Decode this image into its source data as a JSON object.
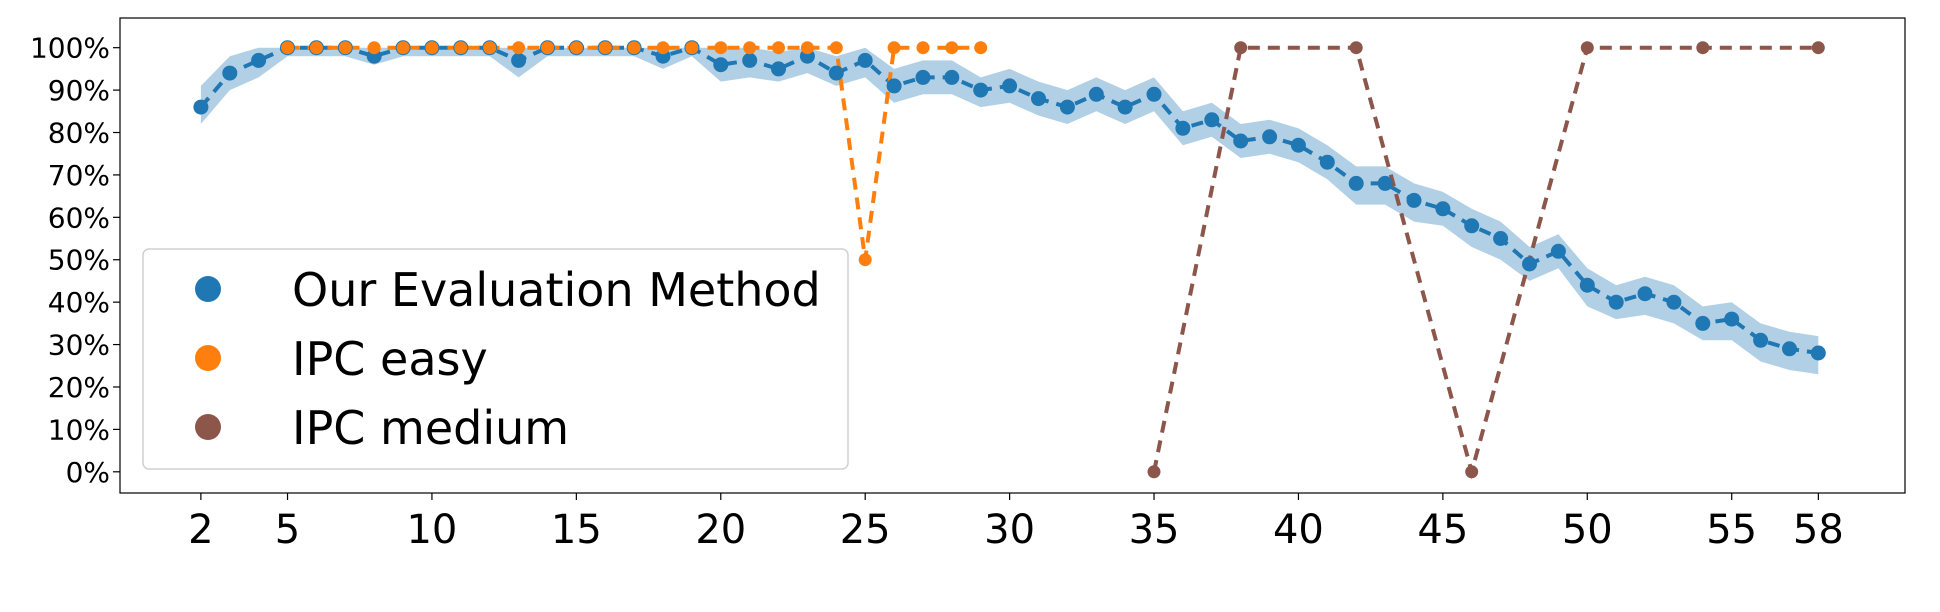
{
  "chart_data": {
    "type": "line",
    "title": "",
    "xlabel": "",
    "ylabel": "",
    "xlim": [
      -0.8,
      61
    ],
    "ylim": [
      -5,
      107
    ],
    "x_ticks": [
      2,
      5,
      10,
      15,
      20,
      25,
      30,
      35,
      40,
      45,
      50,
      55,
      58
    ],
    "x_tick_labels": [
      "2",
      "5",
      "10",
      "15",
      "20",
      "25",
      "30",
      "35",
      "40",
      "45",
      "50",
      "55",
      "58"
    ],
    "y_ticks": [
      0,
      10,
      20,
      30,
      40,
      50,
      60,
      70,
      80,
      90,
      100
    ],
    "y_tick_labels": [
      "0%",
      "10%",
      "20%",
      "30%",
      "40%",
      "50%",
      "60%",
      "70%",
      "80%",
      "90%",
      "100%"
    ],
    "grid": false,
    "legend_position": "center-left",
    "series": [
      {
        "name": "Our Evaluation Method",
        "color": "#1f77b4",
        "band_color": "#1f77b4",
        "x": [
          2,
          3,
          4,
          5,
          6,
          7,
          8,
          9,
          10,
          11,
          12,
          13,
          14,
          15,
          16,
          17,
          18,
          19,
          20,
          21,
          22,
          23,
          24,
          25,
          26,
          27,
          28,
          29,
          30,
          31,
          32,
          33,
          34,
          35,
          36,
          37,
          38,
          39,
          40,
          41,
          42,
          43,
          44,
          45,
          46,
          47,
          48,
          49,
          50,
          51,
          52,
          53,
          54,
          55,
          56,
          57,
          58
        ],
        "values": [
          86,
          94,
          97,
          100,
          100,
          100,
          98,
          100,
          100,
          100,
          100,
          97,
          100,
          100,
          100,
          100,
          98,
          100,
          96,
          97,
          95,
          98,
          94,
          97,
          91,
          93,
          93,
          90,
          91,
          88,
          86,
          89,
          86,
          89,
          81,
          83,
          78,
          79,
          77,
          73,
          68,
          68,
          64,
          62,
          58,
          55,
          49,
          52,
          44,
          40,
          42,
          40,
          35,
          36,
          31,
          29,
          28
        ],
        "lower": [
          82,
          90,
          93,
          98,
          98,
          98,
          96,
          98,
          98,
          98,
          98,
          93,
          98,
          98,
          98,
          98,
          95,
          98,
          92,
          93,
          92,
          94,
          91,
          93,
          87,
          89,
          89,
          86,
          87,
          84,
          82,
          85,
          82,
          85,
          77,
          79,
          74,
          75,
          73,
          69,
          63,
          63,
          59,
          58,
          53,
          50,
          45,
          48,
          39,
          36,
          37,
          35,
          31,
          31,
          26,
          24,
          23
        ],
        "upper": [
          91,
          98,
          100,
          100,
          100,
          100,
          100,
          100,
          100,
          100,
          100,
          100,
          100,
          100,
          100,
          100,
          100,
          100,
          100,
          100,
          99,
          100,
          98,
          100,
          95,
          97,
          97,
          93,
          95,
          92,
          90,
          93,
          90,
          93,
          85,
          87,
          82,
          83,
          81,
          77,
          72,
          72,
          68,
          66,
          62,
          59,
          53,
          56,
          48,
          44,
          46,
          44,
          39,
          40,
          35,
          33,
          32
        ]
      },
      {
        "name": "IPC easy",
        "color": "#ff7f0e",
        "x": [
          5,
          6,
          7,
          8,
          9,
          10,
          11,
          12,
          13,
          14,
          15,
          16,
          17,
          18,
          19,
          20,
          21,
          22,
          23,
          24,
          25,
          26,
          27,
          28,
          29
        ],
        "values": [
          100,
          100,
          100,
          100,
          100,
          100,
          100,
          100,
          100,
          100,
          100,
          100,
          100,
          100,
          100,
          100,
          100,
          100,
          100,
          100,
          50,
          100,
          100,
          100,
          100
        ]
      },
      {
        "name": "IPC medium",
        "color": "#8c564b",
        "x": [
          35,
          38,
          42,
          46,
          50,
          54,
          58
        ],
        "values": [
          0,
          100,
          100,
          0,
          100,
          100,
          100
        ]
      }
    ]
  }
}
